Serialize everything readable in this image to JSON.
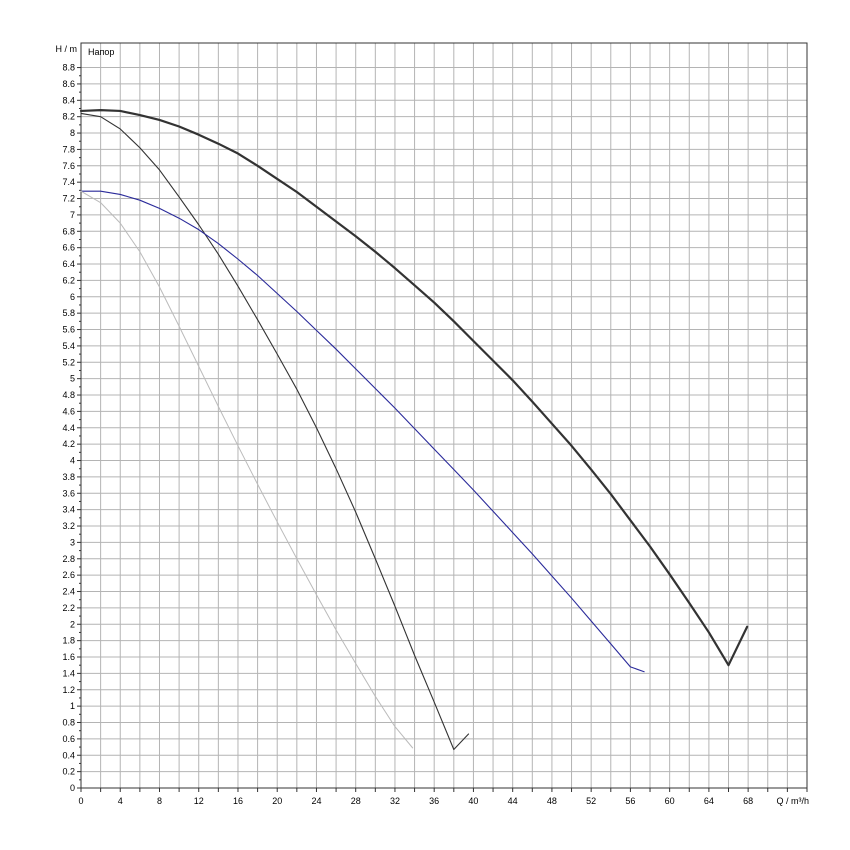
{
  "chart_data": {
    "type": "line",
    "xlabel": "Q / m³/h",
    "ylabel": "H / m",
    "legend": "Напор",
    "legend_placement": "top-left",
    "xlim": [
      0,
      74
    ],
    "ylim": [
      0,
      9.1
    ],
    "x_ticks": [
      0,
      4,
      8,
      12,
      16,
      20,
      24,
      28,
      32,
      36,
      40,
      44,
      48,
      52,
      56,
      60,
      64,
      68
    ],
    "x_minor_step": 2,
    "y_tick_step": 0.2,
    "y_tick_max": 8.8,
    "grid": true,
    "series": [
      {
        "color": "#333333",
        "width": 2.2,
        "points": [
          [
            0,
            8.27
          ],
          [
            2,
            8.28
          ],
          [
            4,
            8.27
          ],
          [
            6,
            8.22
          ],
          [
            8,
            8.16
          ],
          [
            10,
            8.08
          ],
          [
            12,
            7.98
          ],
          [
            14,
            7.87
          ],
          [
            16,
            7.75
          ],
          [
            18,
            7.6
          ],
          [
            20,
            7.44
          ],
          [
            22,
            7.28
          ],
          [
            24,
            7.1
          ],
          [
            26,
            6.92
          ],
          [
            28,
            6.74
          ],
          [
            30,
            6.55
          ],
          [
            32,
            6.35
          ],
          [
            34,
            6.14
          ],
          [
            36,
            5.93
          ],
          [
            38,
            5.7
          ],
          [
            40,
            5.46
          ],
          [
            42,
            5.22
          ],
          [
            44,
            4.98
          ],
          [
            46,
            4.72
          ],
          [
            48,
            4.45
          ],
          [
            50,
            4.18
          ],
          [
            52,
            3.89
          ],
          [
            54,
            3.59
          ],
          [
            56,
            3.27
          ],
          [
            58,
            2.95
          ],
          [
            60,
            2.61
          ],
          [
            62,
            2.26
          ],
          [
            64,
            1.9
          ],
          [
            66,
            1.5
          ],
          [
            67.9,
            1.97
          ]
        ]
      },
      {
        "color": "#333333",
        "width": 1.1,
        "points": [
          [
            0,
            8.24
          ],
          [
            2,
            8.2
          ],
          [
            4,
            8.05
          ],
          [
            6,
            7.82
          ],
          [
            8,
            7.55
          ],
          [
            10,
            7.22
          ],
          [
            12,
            6.88
          ],
          [
            14,
            6.52
          ],
          [
            16,
            6.13
          ],
          [
            18,
            5.72
          ],
          [
            20,
            5.3
          ],
          [
            22,
            4.87
          ],
          [
            24,
            4.4
          ],
          [
            26,
            3.9
          ],
          [
            28,
            3.37
          ],
          [
            30,
            2.8
          ],
          [
            32,
            2.22
          ],
          [
            34,
            1.62
          ],
          [
            36,
            1.05
          ],
          [
            38,
            0.47
          ],
          [
            39.5,
            0.66
          ]
        ]
      },
      {
        "color": "#2a2a9a",
        "width": 1.1,
        "points": [
          [
            0,
            7.29
          ],
          [
            2,
            7.29
          ],
          [
            4,
            7.25
          ],
          [
            6,
            7.18
          ],
          [
            8,
            7.08
          ],
          [
            10,
            6.96
          ],
          [
            12,
            6.82
          ],
          [
            14,
            6.65
          ],
          [
            16,
            6.46
          ],
          [
            18,
            6.26
          ],
          [
            20,
            6.04
          ],
          [
            22,
            5.82
          ],
          [
            24,
            5.59
          ],
          [
            26,
            5.36
          ],
          [
            28,
            5.12
          ],
          [
            30,
            4.88
          ],
          [
            32,
            4.64
          ],
          [
            34,
            4.39
          ],
          [
            36,
            4.14
          ],
          [
            38,
            3.89
          ],
          [
            40,
            3.64
          ],
          [
            42,
            3.38
          ],
          [
            44,
            3.12
          ],
          [
            46,
            2.86
          ],
          [
            48,
            2.59
          ],
          [
            50,
            2.32
          ],
          [
            52,
            2.04
          ],
          [
            54,
            1.76
          ],
          [
            56,
            1.48
          ],
          [
            57.4,
            1.42
          ]
        ]
      },
      {
        "color": "#bbbbbb",
        "width": 1.0,
        "points": [
          [
            0,
            7.29
          ],
          [
            2,
            7.15
          ],
          [
            4,
            6.9
          ],
          [
            6,
            6.55
          ],
          [
            8,
            6.12
          ],
          [
            10,
            5.64
          ],
          [
            12,
            5.15
          ],
          [
            14,
            4.66
          ],
          [
            16,
            4.18
          ],
          [
            18,
            3.71
          ],
          [
            20,
            3.25
          ],
          [
            22,
            2.8
          ],
          [
            24,
            2.36
          ],
          [
            26,
            1.93
          ],
          [
            28,
            1.52
          ],
          [
            30,
            1.12
          ],
          [
            32,
            0.75
          ],
          [
            33.8,
            0.49
          ]
        ]
      }
    ]
  }
}
